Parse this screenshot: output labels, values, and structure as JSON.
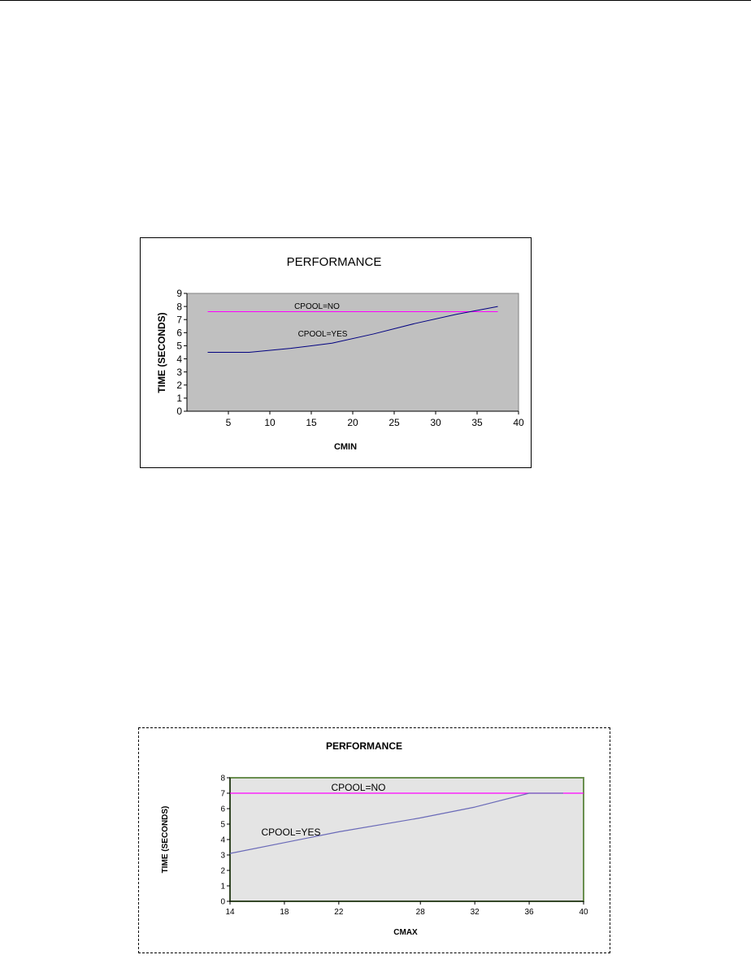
{
  "chart_data": [
    {
      "type": "line",
      "title": "PERFORMANCE",
      "xlabel": "CMIN",
      "ylabel": "TIME (SECONDS)",
      "xlim": [
        0,
        40
      ],
      "ylim": [
        0,
        9
      ],
      "xticks": [
        5,
        10,
        15,
        20,
        25,
        30,
        35,
        40
      ],
      "yticks": [
        0,
        1,
        2,
        3,
        4,
        5,
        6,
        7,
        8,
        9
      ],
      "grid": false,
      "legend": "none",
      "plot_background": "#c0c0c0",
      "series": [
        {
          "name": "CPOOL=NO",
          "color": "#ff00ff",
          "x": [
            2.5,
            37.5
          ],
          "y": [
            7.6,
            7.6
          ]
        },
        {
          "name": "CPOOL=YES",
          "color": "#000080",
          "x": [
            2.5,
            7.5,
            12.5,
            17.5,
            22.5,
            27.5,
            32.5,
            37.5
          ],
          "y": [
            4.5,
            4.5,
            4.8,
            5.2,
            5.9,
            6.7,
            7.4,
            8.0
          ]
        }
      ]
    },
    {
      "type": "line",
      "title": "PERFORMANCE",
      "xlabel": "CMAX",
      "ylabel": "TIME (SECONDS)",
      "xlim": [
        14,
        40
      ],
      "ylim": [
        0,
        8
      ],
      "xticks": [
        14,
        18,
        22,
        28,
        32,
        36,
        40
      ],
      "yticks": [
        0,
        1,
        2,
        3,
        4,
        5,
        6,
        7,
        8
      ],
      "grid": false,
      "legend": "none",
      "plot_background": "#e4e4e4",
      "series": [
        {
          "name": "CPOOL=NO",
          "color": "#ff00ff",
          "x": [
            14,
            40
          ],
          "y": [
            7.0,
            7.0
          ]
        },
        {
          "name": "CPOOL=YES",
          "color": "#6a6ab8",
          "x": [
            14,
            18,
            22,
            28,
            32,
            36,
            38.5
          ],
          "y": [
            3.1,
            3.8,
            4.5,
            5.4,
            6.1,
            7.0,
            7.0
          ]
        }
      ]
    }
  ]
}
